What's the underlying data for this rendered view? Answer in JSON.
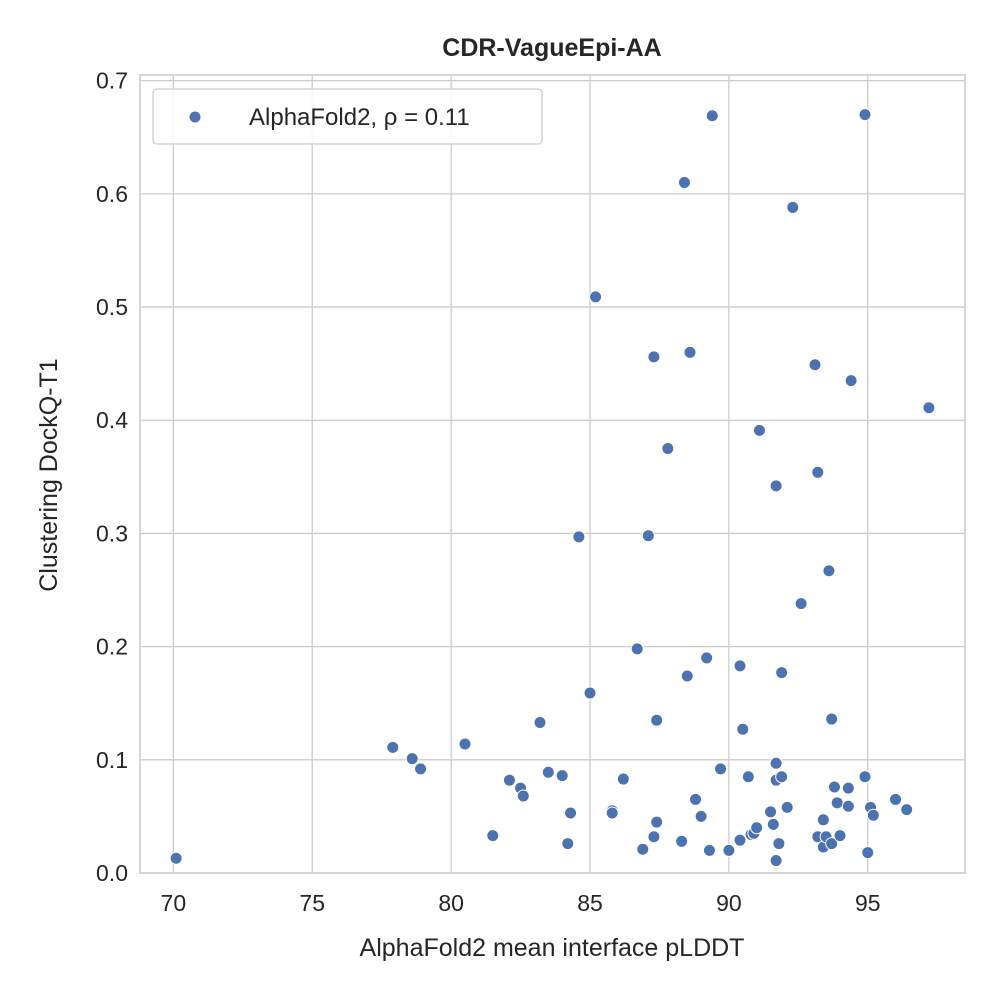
{
  "chart_data": {
    "type": "scatter",
    "title": "CDR-VagueEpi-AA",
    "xlabel": "AlphaFold2 mean interface pLDDT",
    "ylabel": "Clustering DockQ-T1",
    "xlim": [
      68.8,
      98.5
    ],
    "ylim": [
      0.0,
      0.705
    ],
    "xticks": [
      70,
      75,
      80,
      85,
      90,
      95
    ],
    "yticks": [
      0.0,
      0.1,
      0.2,
      0.3,
      0.4,
      0.5,
      0.6,
      0.7
    ],
    "xtick_labels": [
      "70",
      "75",
      "80",
      "85",
      "90",
      "95"
    ],
    "ytick_labels": [
      "0.0",
      "0.1",
      "0.2",
      "0.3",
      "0.4",
      "0.5",
      "0.6",
      "0.7"
    ],
    "grid": true,
    "legend_position": "top-left",
    "legend_label": "AlphaFold2, ρ = 0.11",
    "color": "#4c72b0",
    "series": [
      {
        "name": "AlphaFold2, ρ = 0.11",
        "x": [
          70.1,
          77.9,
          78.6,
          78.9,
          80.5,
          81.5,
          82.1,
          82.5,
          82.6,
          83.2,
          83.5,
          84.0,
          84.2,
          84.3,
          84.6,
          85.0,
          85.2,
          85.8,
          85.8,
          86.2,
          86.7,
          86.9,
          87.1,
          87.3,
          87.3,
          87.4,
          87.4,
          87.8,
          88.3,
          88.4,
          88.5,
          88.6,
          88.8,
          89.0,
          89.2,
          89.3,
          89.4,
          89.7,
          90.0,
          90.4,
          90.4,
          90.5,
          90.7,
          90.8,
          90.9,
          91.0,
          91.1,
          91.5,
          91.6,
          91.7,
          91.7,
          91.7,
          91.7,
          91.8,
          91.9,
          91.9,
          92.1,
          92.3,
          92.6,
          93.1,
          93.2,
          93.2,
          93.4,
          93.4,
          93.5,
          93.6,
          93.7,
          93.7,
          93.8,
          93.8,
          93.9,
          94.0,
          94.3,
          94.3,
          94.4,
          94.9,
          94.9,
          95.0,
          95.1,
          95.1,
          95.2,
          96.0,
          96.4,
          97.2
        ],
        "y": [
          0.013,
          0.111,
          0.101,
          0.092,
          0.114,
          0.033,
          0.082,
          0.075,
          0.068,
          0.133,
          0.089,
          0.086,
          0.026,
          0.053,
          0.297,
          0.159,
          0.509,
          0.055,
          0.053,
          0.083,
          0.198,
          0.021,
          0.298,
          0.456,
          0.032,
          0.045,
          0.135,
          0.375,
          0.028,
          0.61,
          0.174,
          0.46,
          0.065,
          0.05,
          0.19,
          0.02,
          0.669,
          0.092,
          0.02,
          0.183,
          0.029,
          0.127,
          0.085,
          0.034,
          0.035,
          0.04,
          0.391,
          0.054,
          0.043,
          0.097,
          0.082,
          0.342,
          0.011,
          0.026,
          0.177,
          0.085,
          0.058,
          0.588,
          0.238,
          0.449,
          0.032,
          0.354,
          0.047,
          0.023,
          0.032,
          0.267,
          0.136,
          0.026,
          0.076,
          0.076,
          0.062,
          0.033,
          0.075,
          0.059,
          0.435,
          0.085,
          0.67,
          0.018,
          0.058,
          0.058,
          0.051,
          0.065,
          0.056,
          0.411
        ]
      }
    ]
  }
}
